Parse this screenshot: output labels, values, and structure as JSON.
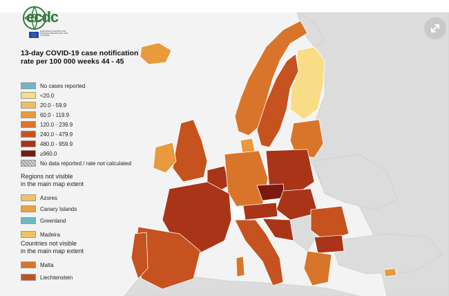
{
  "header": {
    "logo_text": "ecdc",
    "logo_subtext": "EUROPEAN CENTRE FOR DISEASE PREVENTION AND CONTROL"
  },
  "legend": {
    "title_line1": "13-day COVID-19 case notification",
    "title_line2": "rate per 100 000 weeks 44 - 45",
    "items": [
      {
        "label": "No cases reported",
        "color": "#6cb8c0"
      },
      {
        "label": "<20.0",
        "color": "#f8dc86"
      },
      {
        "label": "20.0 - 59.9",
        "color": "#f1bd5d"
      },
      {
        "label": "60.0 - 119.9",
        "color": "#e89a3c"
      },
      {
        "label": "120.0 - 239.9",
        "color": "#d8752b"
      },
      {
        "label": "240.0 - 479.9",
        "color": "#c5521f"
      },
      {
        "label": "480.0 - 959.9",
        "color": "#a93418"
      },
      {
        "label": "≥960.0",
        "color": "#7a1a0e"
      },
      {
        "label": "No data reported / rate not calculated",
        "color": "hatch"
      }
    ]
  },
  "regions_section": {
    "title_line1": "Regions not visible",
    "title_line2": "in the main map extent",
    "items": [
      {
        "label": "Azores",
        "color": "#f1c35f"
      },
      {
        "label": "Canary Islands",
        "color": "#e8a43e"
      },
      {
        "label": "Greenland",
        "color": "#6cb8c0"
      },
      {
        "label": "Madeira",
        "color": "#f1c35f"
      }
    ]
  },
  "countries_section": {
    "title_line1": "Countries not visible",
    "title_line2": "in the main map extent",
    "items": [
      {
        "label": "Malta",
        "color": "#d8752b"
      },
      {
        "label": "Liechtenstein",
        "color": "#c5521f"
      }
    ]
  },
  "map": {
    "background_color": "#f3f3f3",
    "non_eu_land_color": "#dcdcdc",
    "border_color": "#ffffff",
    "expand_icon": "expand-arrows-icon"
  }
}
